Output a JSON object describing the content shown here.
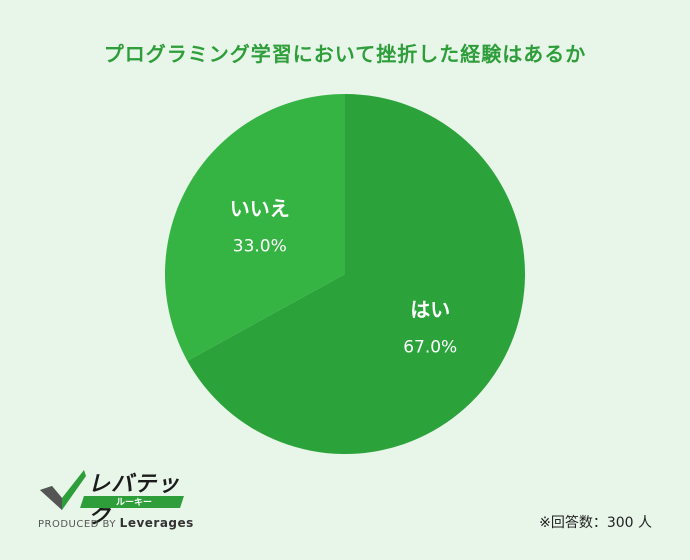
{
  "chart_data": {
    "type": "pie",
    "title": "プログラミング学習において挫折した経験はあるか",
    "slices": [
      {
        "label": "はい",
        "value": 67.0,
        "display": "67.0%",
        "color": "#2ba33a"
      },
      {
        "label": "いいえ",
        "value": 33.0,
        "display": "33.0%",
        "color": "#35b443"
      }
    ],
    "start_angle_deg": 0,
    "direction": "clockwise"
  },
  "logo": {
    "main": "レバテック",
    "sub": "ルーキー",
    "produced_prefix": "PRODUCED BY",
    "produced_brand": "Leverages"
  },
  "note": "※回答数：300 人",
  "colors": {
    "title": "#2e9e3a",
    "background": "#e8f5e9"
  }
}
